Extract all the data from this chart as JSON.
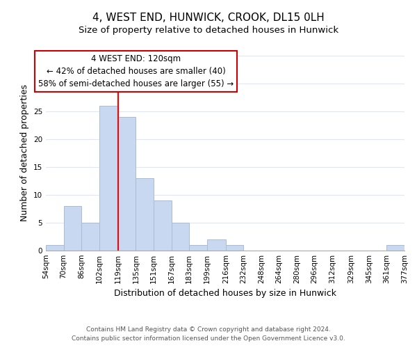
{
  "title": "4, WEST END, HUNWICK, CROOK, DL15 0LH",
  "subtitle": "Size of property relative to detached houses in Hunwick",
  "xlabel": "Distribution of detached houses by size in Hunwick",
  "ylabel": "Number of detached properties",
  "bar_color": "#c8d8f0",
  "bar_edge_color": "#aabbd4",
  "vline_x": 119,
  "vline_color": "red",
  "bin_edges": [
    54,
    70,
    86,
    102,
    119,
    135,
    151,
    167,
    183,
    199,
    216,
    232,
    248,
    264,
    280,
    296,
    312,
    329,
    345,
    361,
    377
  ],
  "bar_heights": [
    1,
    8,
    5,
    26,
    24,
    13,
    9,
    5,
    1,
    2,
    1,
    0,
    0,
    0,
    0,
    0,
    0,
    0,
    0,
    1
  ],
  "ylim": [
    0,
    35
  ],
  "yticks": [
    0,
    5,
    10,
    15,
    20,
    25,
    30,
    35
  ],
  "annotation_text": "4 WEST END: 120sqm\n← 42% of detached houses are smaller (40)\n58% of semi-detached houses are larger (55) →",
  "footer_line1": "Contains HM Land Registry data © Crown copyright and database right 2024.",
  "footer_line2": "Contains public sector information licensed under the Open Government Licence v3.0.",
  "title_fontsize": 11,
  "subtitle_fontsize": 9.5,
  "label_fontsize": 9,
  "tick_fontsize": 7.5,
  "annotation_fontsize": 8.5,
  "footer_fontsize": 6.5,
  "background_color": "#ffffff",
  "grid_color": "#dce8f5",
  "annotation_box_color": "#ffffff",
  "annotation_box_edge": "#cc0000"
}
